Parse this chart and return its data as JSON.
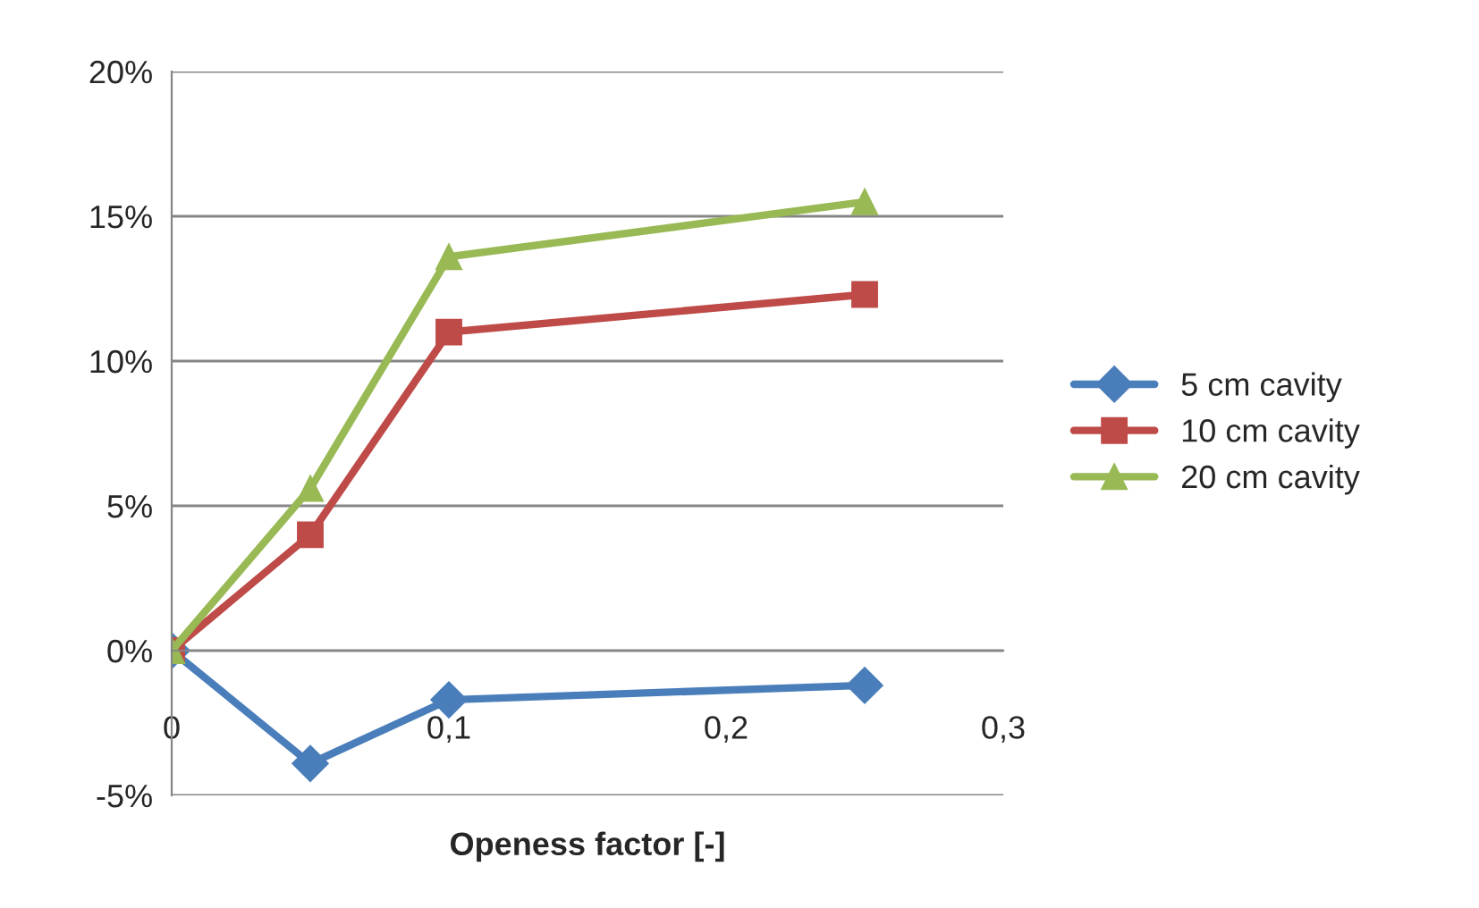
{
  "chart_data": {
    "type": "line",
    "xlabel": "Openess factor [-]",
    "xlim": [
      0,
      0.3
    ],
    "xticks": [
      {
        "value": 0,
        "label": "0"
      },
      {
        "value": 0.1,
        "label": "0,1"
      },
      {
        "value": 0.2,
        "label": "0,2"
      },
      {
        "value": 0.3,
        "label": "0,3"
      }
    ],
    "ylim": [
      -5,
      20
    ],
    "yticks": [
      {
        "value": -5,
        "label": "-5%"
      },
      {
        "value": 0,
        "label": "0%"
      },
      {
        "value": 5,
        "label": "5%"
      },
      {
        "value": 10,
        "label": "10%"
      },
      {
        "value": 15,
        "label": "15%"
      },
      {
        "value": 20,
        "label": "20%"
      }
    ],
    "grid": "y",
    "legend": "right",
    "line_style": "solid",
    "series": [
      {
        "name": "5 cm cavity",
        "color": "#4a7ebb",
        "marker": "diamond",
        "x": [
          0,
          0.05,
          0.1,
          0.25
        ],
        "values": [
          0,
          -3.9,
          -1.7,
          -1.2
        ]
      },
      {
        "name": "10 cm cavity",
        "color": "#be4b48",
        "marker": "square",
        "x": [
          0,
          0.05,
          0.1,
          0.25
        ],
        "values": [
          0,
          4.0,
          11.0,
          12.3
        ]
      },
      {
        "name": "20 cm cavity",
        "color": "#98b954",
        "marker": "triangle",
        "x": [
          0,
          0.05,
          0.1,
          0.25
        ],
        "values": [
          0,
          5.6,
          13.6,
          15.5
        ]
      }
    ]
  }
}
